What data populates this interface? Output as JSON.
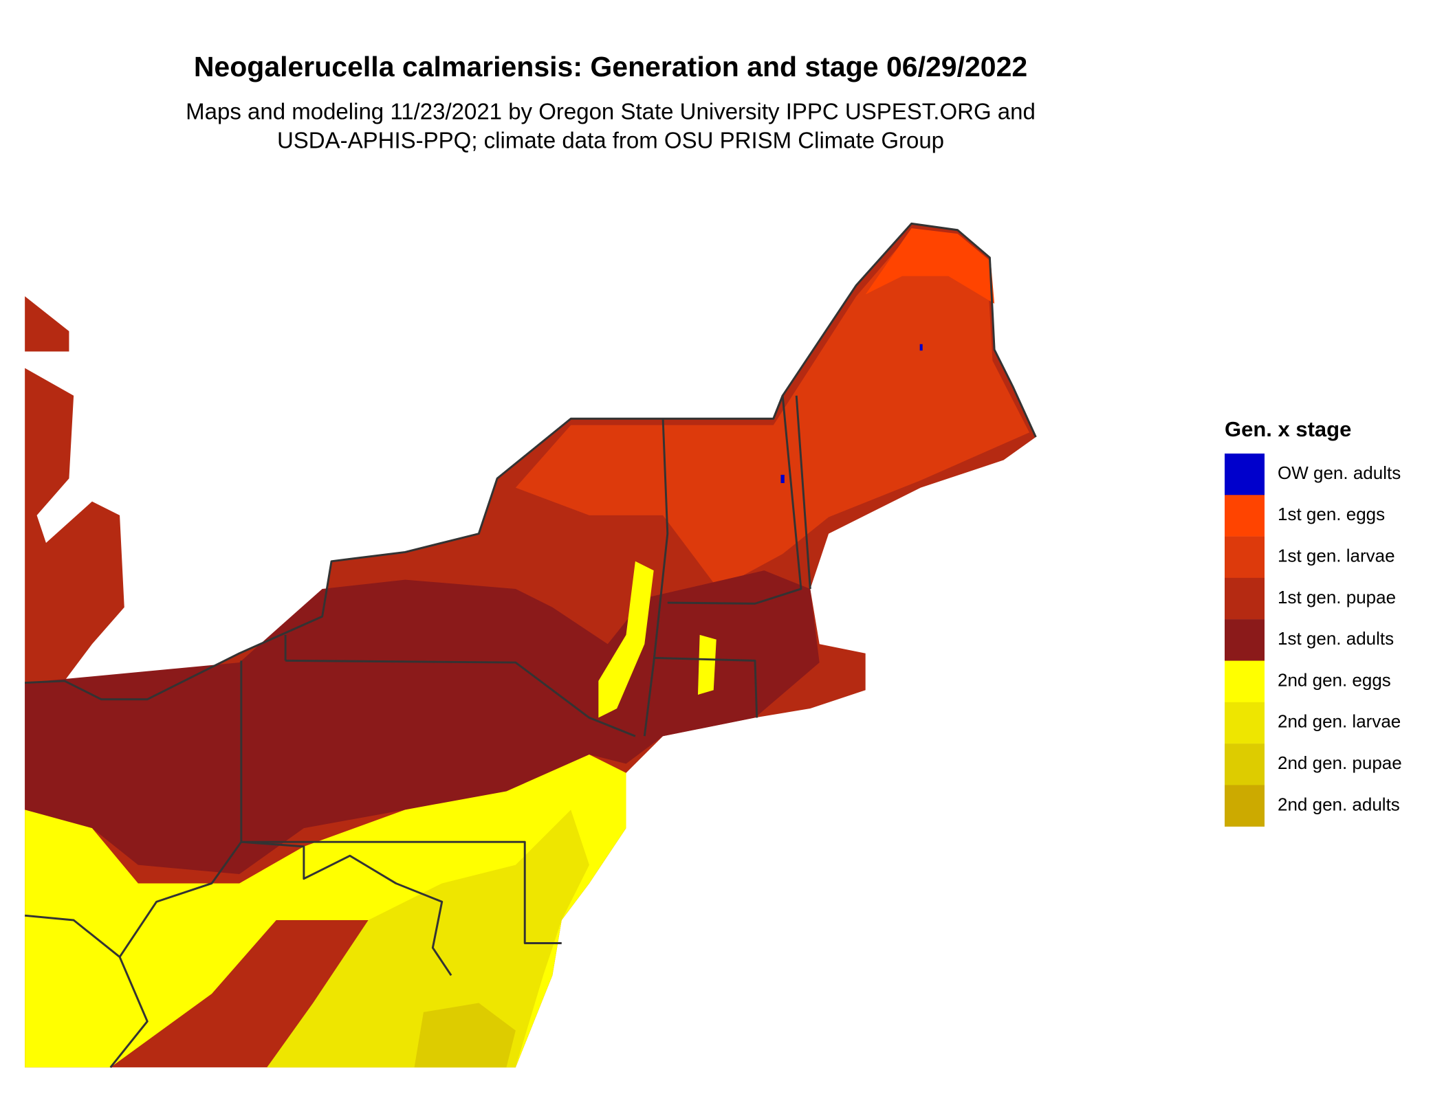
{
  "title": "Neogalerucella calmariensis: Generation and stage 06/29/2022",
  "subtitle": [
    "Maps and modeling 11/23/2021 by Oregon State University IPPC USPEST.ORG and",
    "USDA-APHIS-PPQ; climate data from OSU PRISM Climate Group"
  ],
  "legend": {
    "title": "Gen. x stage",
    "items": [
      {
        "label": "OW gen. adults",
        "color": "#0000cc"
      },
      {
        "label": "1st gen. eggs",
        "color": "#ff4400"
      },
      {
        "label": "1st gen. larvae",
        "color": "#dd3a0c"
      },
      {
        "label": "1st gen. pupae",
        "color": "#b52a12"
      },
      {
        "label": "1st gen. adults",
        "color": "#8b1a1a"
      },
      {
        "label": "2nd gen. eggs",
        "color": "#ffff00"
      },
      {
        "label": "2nd gen. larvae",
        "color": "#eee600"
      },
      {
        "label": "2nd gen. pupae",
        "color": "#ddcc00"
      },
      {
        "label": "2nd gen. adults",
        "color": "#ccaa00"
      }
    ]
  }
}
